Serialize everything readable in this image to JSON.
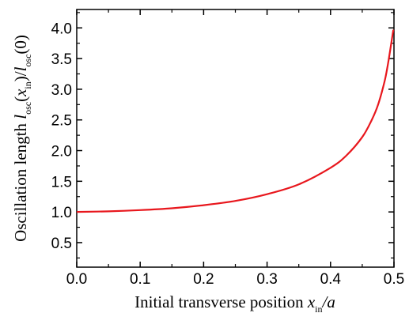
{
  "chart_data": {
    "type": "line",
    "xlabel": {
      "main": "Initial transverse position ",
      "var": "x",
      "sub": "in",
      "tail": "/a"
    },
    "ylabel": {
      "pre": "Oscillation length ",
      "l1": "l",
      "sub1": "osc",
      "p1": "(",
      "x": "x",
      "sub2": "in",
      "p2": ")/",
      "l2": "l",
      "sub3": "osc",
      "p3": "(0)"
    },
    "xlim": [
      0,
      0.5
    ],
    "ylim": [
      0.1,
      4.3
    ],
    "xticks": [
      0.0,
      0.1,
      0.2,
      0.3,
      0.4,
      0.5
    ],
    "xtick_labels": [
      "0.0",
      "0.1",
      "0.2",
      "0.3",
      "0.4",
      "0.5"
    ],
    "yticks": [
      0.5,
      1.0,
      1.5,
      2.0,
      2.5,
      3.0,
      3.5,
      4.0
    ],
    "ytick_labels": [
      "0.5",
      "1.0",
      "1.5",
      "2.0",
      "2.5",
      "3.0",
      "3.5",
      "4.0"
    ],
    "grid": false,
    "series": [
      {
        "color": "#e8171d",
        "x": [
          0.0,
          0.05,
          0.1,
          0.15,
          0.2,
          0.25,
          0.3,
          0.35,
          0.4,
          0.425,
          0.45,
          0.465,
          0.475,
          0.485,
          0.49,
          0.495,
          0.499
        ],
        "y": [
          1.0,
          1.01,
          1.03,
          1.06,
          1.11,
          1.18,
          1.29,
          1.45,
          1.72,
          1.92,
          2.22,
          2.5,
          2.75,
          3.12,
          3.38,
          3.7,
          3.97
        ]
      }
    ]
  }
}
